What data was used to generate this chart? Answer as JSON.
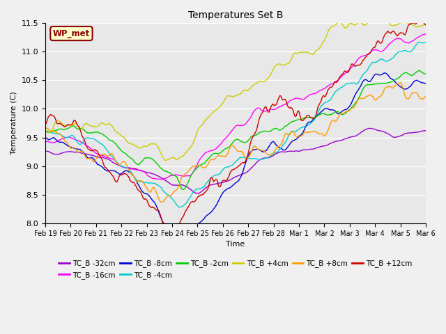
{
  "title": "Temperatures Set B",
  "xlabel": "Time",
  "ylabel": "Temperature (C)",
  "ylim": [
    8.0,
    11.5
  ],
  "series_colors": {
    "TC_B -32cm": "#9900cc",
    "TC_B -16cm": "#ff00ff",
    "TC_B -8cm": "#0000cc",
    "TC_B -4cm": "#00cccc",
    "TC_B -2cm": "#00cc00",
    "TC_B +4cm": "#cccc00",
    "TC_B +8cm": "#ff9900",
    "TC_B +12cm": "#cc0000"
  },
  "wp_met_label": "WP_met",
  "xtick_labels": [
    "Feb 19",
    "Feb 20",
    "Feb 21",
    "Feb 22",
    "Feb 23",
    "Feb 24",
    "Feb 25",
    "Feb 26",
    "Feb 27",
    "Feb 28",
    "Mar 1",
    "Mar 2",
    "Mar 3",
    "Mar 4",
    "Mar 5",
    "Mar 6"
  ],
  "ytick_vals": [
    8.0,
    8.5,
    9.0,
    9.5,
    10.0,
    10.5,
    11.0,
    11.5
  ],
  "figsize": [
    6.4,
    4.8
  ],
  "dpi": 100,
  "bg_color": "#f0f0f0",
  "plot_bg": "#e8e8e8",
  "grid_color": "#ffffff",
  "legend_order": [
    "TC_B -32cm",
    "TC_B -16cm",
    "TC_B -8cm",
    "TC_B -4cm",
    "TC_B -2cm",
    "TC_B +4cm",
    "TC_B +8cm",
    "TC_B +12cm"
  ]
}
